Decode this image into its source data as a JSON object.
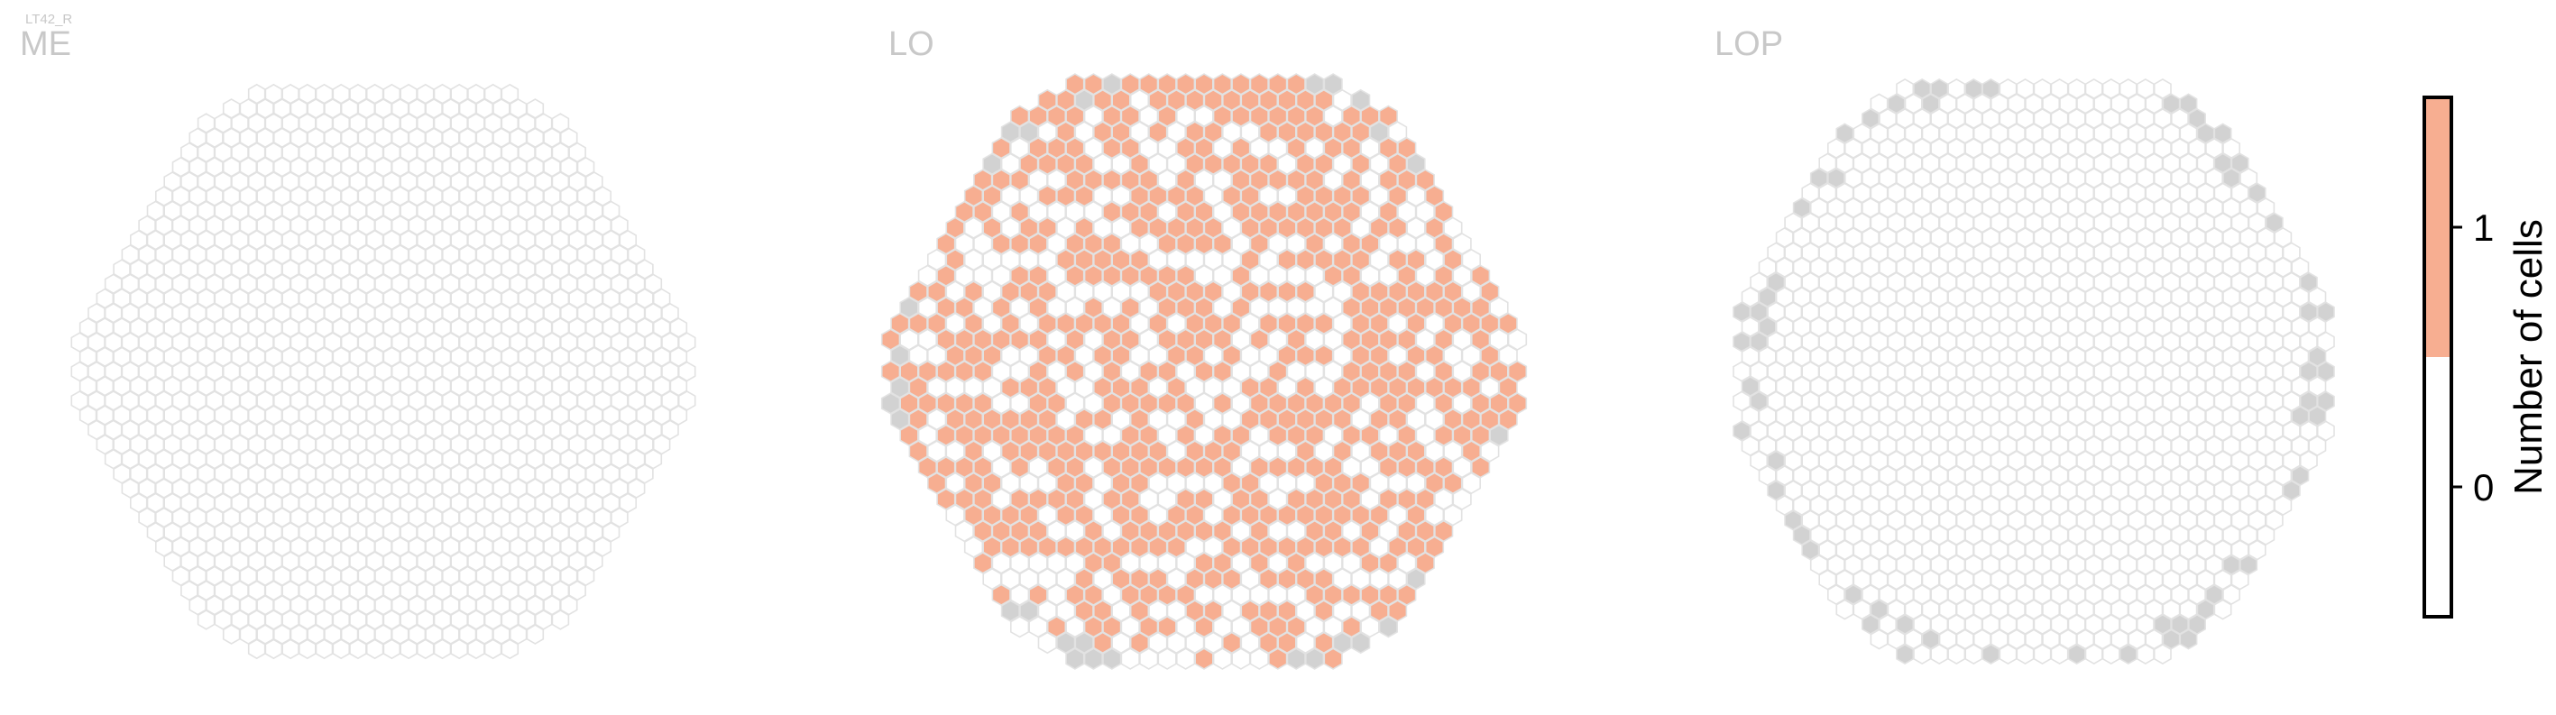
{
  "figure_label": "LT42_R",
  "chart_data": {
    "type": "heatmap",
    "subtype": "hexagonal-column-map",
    "panels": [
      {
        "name": "ME",
        "grid_radius": 19,
        "description_of_values": "all columns count 0",
        "counts": {
          "0": 1000,
          "1": 0,
          "absent": 0
        }
      },
      {
        "name": "LO",
        "grid_radius": 17,
        "description_of_values": "columns with 1 cell shown in salmon, 0 in white, unmapped in grey",
        "counts": {
          "0": 320,
          "1": 560,
          "absent": 25
        }
      },
      {
        "name": "LOP",
        "grid_radius": 17,
        "description_of_values": "all mapped columns count 0; peripheral columns unmapped",
        "counts": {
          "0": 845,
          "1": 0,
          "absent": 55
        }
      }
    ],
    "colorbar": {
      "label": "Number of cells",
      "ticks": [
        "0",
        "1"
      ],
      "values": [
        0,
        1
      ],
      "colors": {
        "0": "#ffffff",
        "1": "#f7ae91"
      }
    },
    "colors": {
      "value_1_fill": "#f7ae91",
      "value_0_fill": "#ffffff",
      "absent_fill": "#d2d2d2",
      "hex_stroke": "#e2e2e2",
      "title_color": "#c8c8c8"
    }
  }
}
